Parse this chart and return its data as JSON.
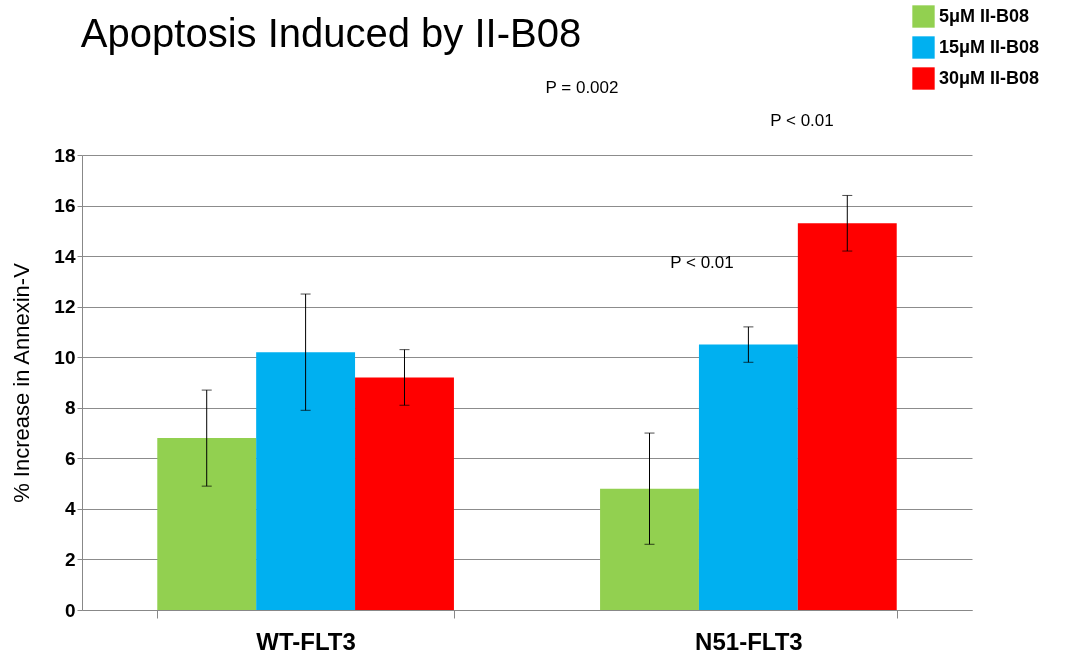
{
  "chart_data": {
    "type": "bar",
    "title": "Apoptosis Induced by II-B08",
    "ylabel": "% Increase in Annexin-V",
    "categories": [
      "WT-FLT3",
      "N51-FLT3"
    ],
    "series": [
      {
        "name": "5μM II-B08",
        "color": "#92d050",
        "values": [
          6.8,
          4.8
        ],
        "errors": [
          1.9,
          2.2
        ]
      },
      {
        "name": "15μM II-B08",
        "color": "#00b0f0",
        "values": [
          10.2,
          10.5
        ],
        "errors": [
          2.3,
          0.7
        ]
      },
      {
        "name": "30μM II-B08",
        "color": "#ff0000",
        "values": [
          9.2,
          15.3
        ],
        "errors": [
          1.1,
          1.1
        ]
      }
    ],
    "ylim": [
      0,
      18
    ],
    "yticks": [
      0,
      2,
      4,
      6,
      8,
      10,
      12,
      14,
      16,
      18
    ],
    "grid": "y",
    "legend": "top right",
    "annotations": [
      "P = 0.002",
      "P < 0.01",
      "P < 0.01"
    ]
  }
}
